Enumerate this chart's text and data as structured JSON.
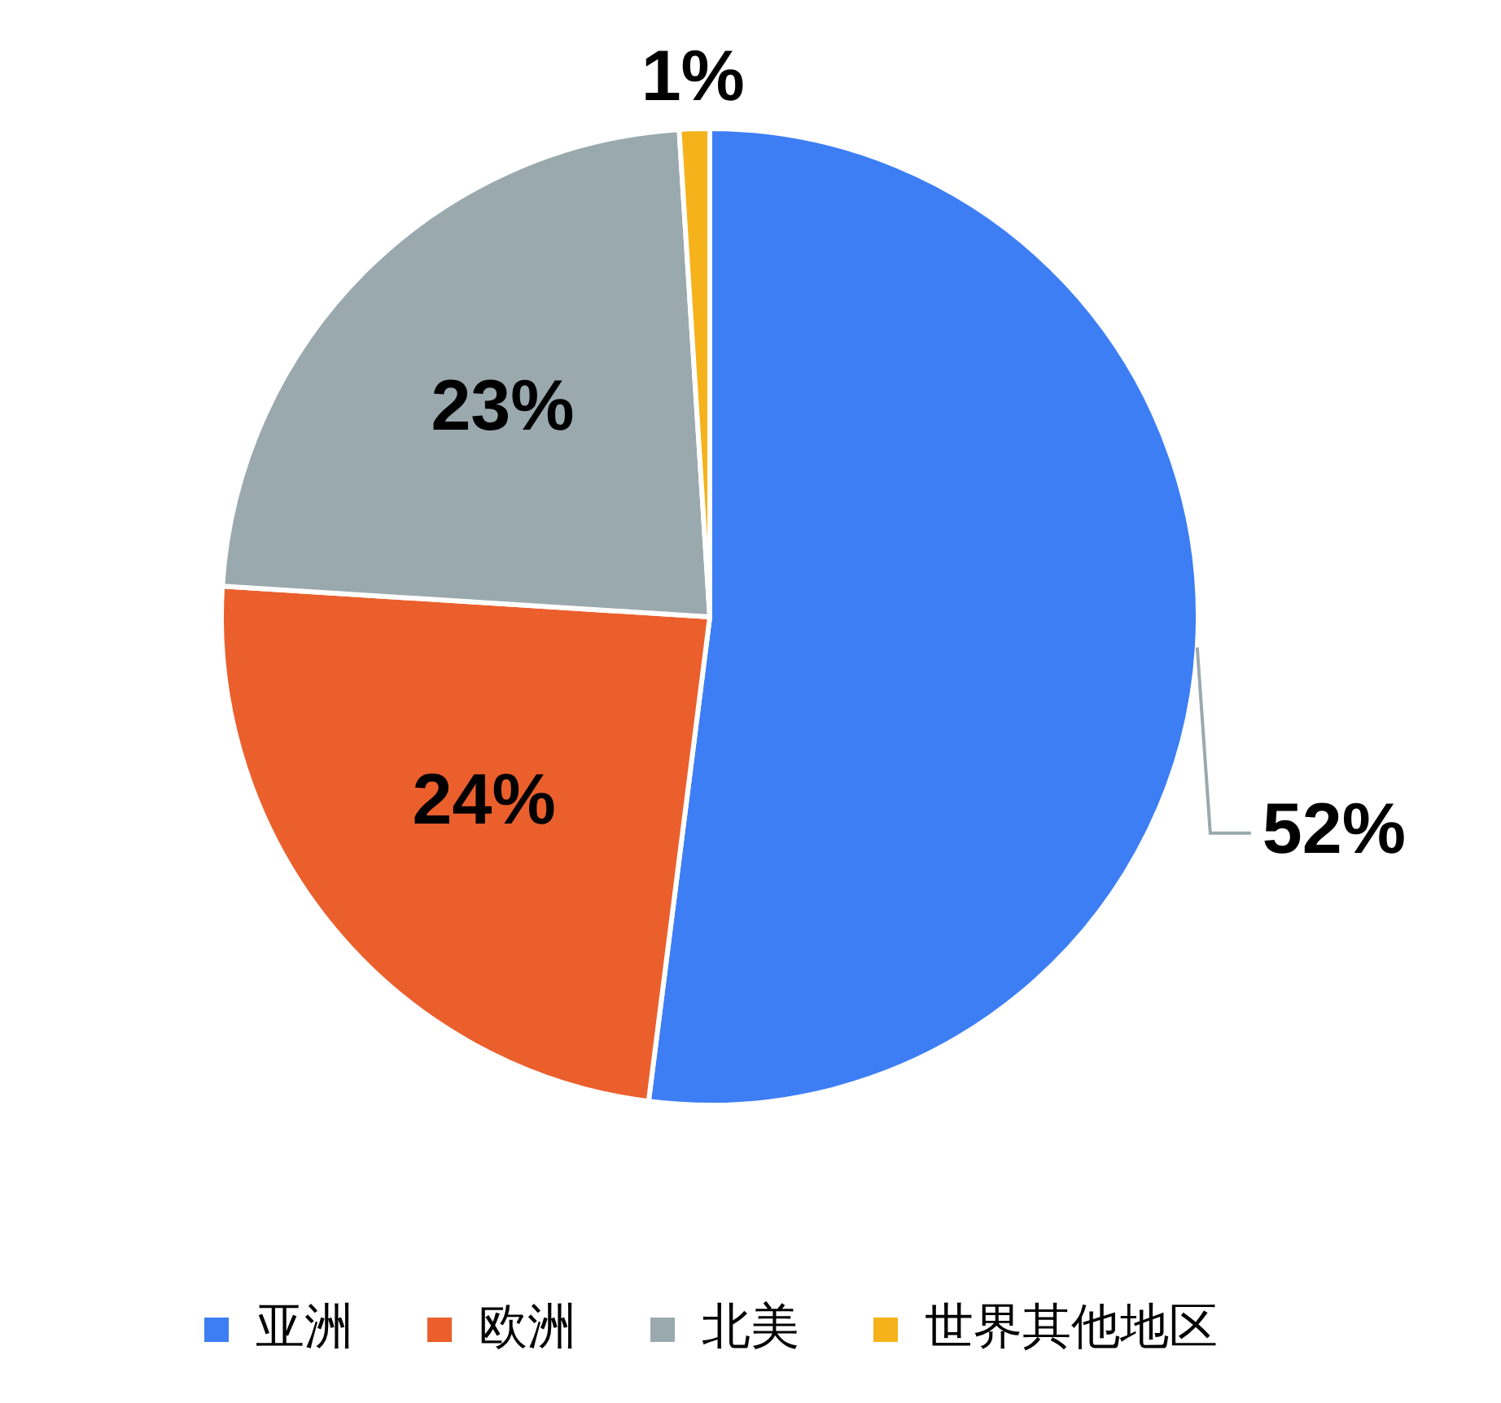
{
  "chart_data": {
    "type": "pie",
    "categories": [
      "亚洲",
      "欧洲",
      "北美",
      "世界其他地区"
    ],
    "values": [
      52,
      24,
      23,
      1
    ],
    "colors": [
      "#3d7ef5",
      "#eb5f2d",
      "#9aa9ad",
      "#f5b21b"
    ],
    "value_labels": [
      "52%",
      "24%",
      "23%",
      "1%"
    ],
    "legend": "bottom"
  }
}
